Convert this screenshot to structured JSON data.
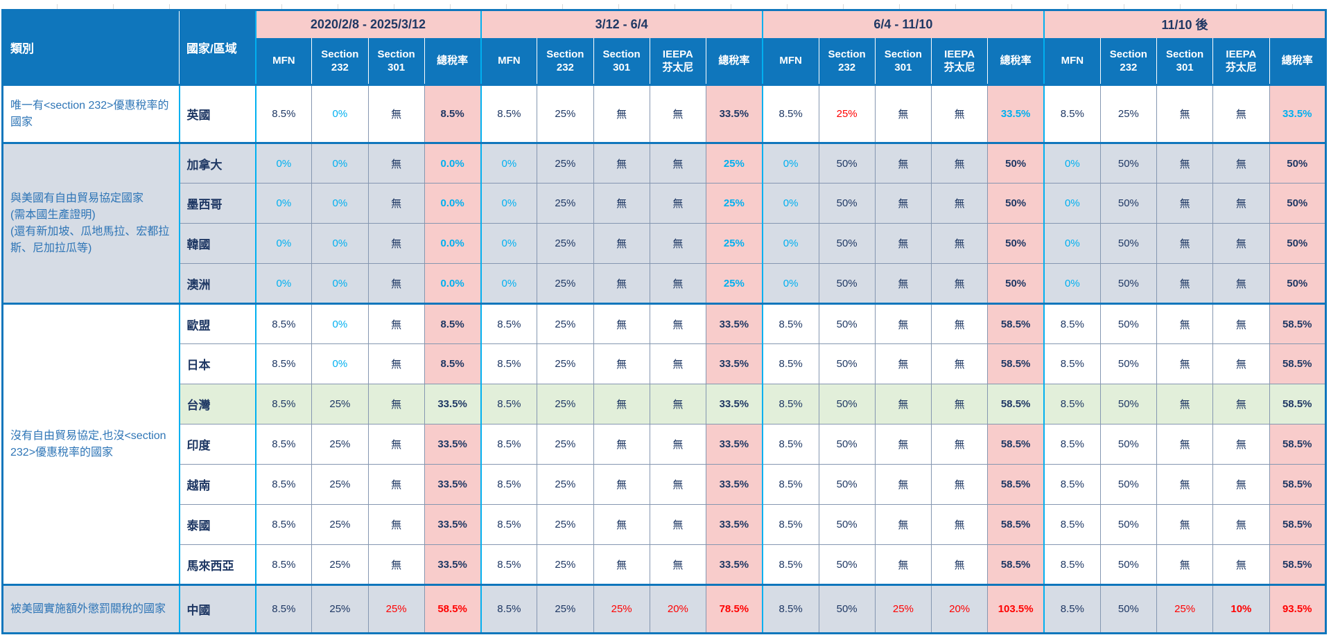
{
  "colors": {
    "header_blue": "#0F76BC",
    "period_pink": "#F8CCCB",
    "navy_text": "#1F3864",
    "cyan_text": "#00B0F0",
    "red_text": "#FF0000",
    "lavender_row": "#D6DCE5",
    "green_row": "#E2EFDA",
    "category_text_blue": "#2E75B6",
    "grid_line": "#8496B0",
    "period_divider_cyan": "#00B0F0"
  },
  "header": {
    "category_label": "類別",
    "country_label": "國家/區域",
    "periods": [
      {
        "label": "2020/2/8 - 2025/3/12",
        "cols": [
          "MFN",
          "Section\n232",
          "Section\n301",
          "總稅率"
        ]
      },
      {
        "label": "3/12 - 6/4",
        "cols": [
          "MFN",
          "Section\n232",
          "Section\n301",
          "IEEPA\n芬太尼",
          "總稅率"
        ]
      },
      {
        "label": "6/4 - 11/10",
        "cols": [
          "MFN",
          "Section\n232",
          "Section\n301",
          "IEEPA\n芬太尼",
          "總稅率"
        ]
      },
      {
        "label": "11/10 後",
        "cols": [
          "MFN",
          "Section\n232",
          "Section\n301",
          "IEEPA\n芬太尼",
          "總稅率"
        ]
      }
    ]
  },
  "groups": [
    {
      "category": "唯一有<section 232>優惠稅率的國家",
      "bg": "white",
      "rows": [
        {
          "country": "英國",
          "bg": "white",
          "cells": [
            [
              "8.5%"
            ],
            [
              "0%",
              "c"
            ],
            [
              "無"
            ],
            [
              "8.5%"
            ],
            [
              "8.5%"
            ],
            [
              "25%"
            ],
            [
              "無"
            ],
            [
              "無"
            ],
            [
              "33.5%"
            ],
            [
              "8.5%"
            ],
            [
              "25%",
              "r"
            ],
            [
              "無"
            ],
            [
              "無"
            ],
            [
              "33.5%",
              "c"
            ],
            [
              "8.5%"
            ],
            [
              "25%"
            ],
            [
              "無"
            ],
            [
              "無"
            ],
            [
              "33.5%",
              "c"
            ]
          ]
        }
      ]
    },
    {
      "category": "與美國有自由貿易協定國家\n(需本國生產證明)\n(還有新加坡、瓜地馬拉、宏都拉斯、尼加拉瓜等)",
      "bg": "lav",
      "rows": [
        {
          "country": "加拿大",
          "bg": "lav",
          "cells": [
            [
              "0%",
              "c"
            ],
            [
              "0%",
              "c"
            ],
            [
              "無"
            ],
            [
              "0.0%",
              "c"
            ],
            [
              "0%",
              "c"
            ],
            [
              "25%"
            ],
            [
              "無"
            ],
            [
              "無"
            ],
            [
              "25%",
              "c"
            ],
            [
              "0%",
              "c"
            ],
            [
              "50%"
            ],
            [
              "無"
            ],
            [
              "無"
            ],
            [
              "50%"
            ],
            [
              "0%",
              "c"
            ],
            [
              "50%"
            ],
            [
              "無"
            ],
            [
              "無"
            ],
            [
              "50%"
            ]
          ]
        },
        {
          "country": "墨西哥",
          "bg": "lav",
          "cells": [
            [
              "0%",
              "c"
            ],
            [
              "0%",
              "c"
            ],
            [
              "無"
            ],
            [
              "0.0%",
              "c"
            ],
            [
              "0%",
              "c"
            ],
            [
              "25%"
            ],
            [
              "無"
            ],
            [
              "無"
            ],
            [
              "25%",
              "c"
            ],
            [
              "0%",
              "c"
            ],
            [
              "50%"
            ],
            [
              "無"
            ],
            [
              "無"
            ],
            [
              "50%"
            ],
            [
              "0%",
              "c"
            ],
            [
              "50%"
            ],
            [
              "無"
            ],
            [
              "無"
            ],
            [
              "50%"
            ]
          ]
        },
        {
          "country": "韓國",
          "bg": "lav",
          "cells": [
            [
              "0%",
              "c"
            ],
            [
              "0%",
              "c"
            ],
            [
              "無"
            ],
            [
              "0.0%",
              "c"
            ],
            [
              "0%",
              "c"
            ],
            [
              "25%"
            ],
            [
              "無"
            ],
            [
              "無"
            ],
            [
              "25%",
              "c"
            ],
            [
              "0%",
              "c"
            ],
            [
              "50%"
            ],
            [
              "無"
            ],
            [
              "無"
            ],
            [
              "50%"
            ],
            [
              "0%",
              "c"
            ],
            [
              "50%"
            ],
            [
              "無"
            ],
            [
              "無"
            ],
            [
              "50%"
            ]
          ]
        },
        {
          "country": "澳洲",
          "bg": "lav",
          "cells": [
            [
              "0%",
              "c"
            ],
            [
              "0%",
              "c"
            ],
            [
              "無"
            ],
            [
              "0.0%",
              "c"
            ],
            [
              "0%",
              "c"
            ],
            [
              "25%"
            ],
            [
              "無"
            ],
            [
              "無"
            ],
            [
              "25%",
              "c"
            ],
            [
              "0%",
              "c"
            ],
            [
              "50%"
            ],
            [
              "無"
            ],
            [
              "無"
            ],
            [
              "50%"
            ],
            [
              "0%",
              "c"
            ],
            [
              "50%"
            ],
            [
              "無"
            ],
            [
              "無"
            ],
            [
              "50%"
            ]
          ]
        }
      ]
    },
    {
      "category": "沒有自由貿易協定,也沒<section 232>優惠稅率的國家",
      "bg": "white",
      "rows": [
        {
          "country": "歐盟",
          "bg": "white",
          "cells": [
            [
              "8.5%"
            ],
            [
              "0%",
              "c"
            ],
            [
              "無"
            ],
            [
              "8.5%"
            ],
            [
              "8.5%"
            ],
            [
              "25%"
            ],
            [
              "無"
            ],
            [
              "無"
            ],
            [
              "33.5%"
            ],
            [
              "8.5%"
            ],
            [
              "50%"
            ],
            [
              "無"
            ],
            [
              "無"
            ],
            [
              "58.5%"
            ],
            [
              "8.5%"
            ],
            [
              "50%"
            ],
            [
              "無"
            ],
            [
              "無"
            ],
            [
              "58.5%"
            ]
          ]
        },
        {
          "country": "日本",
          "bg": "white",
          "cells": [
            [
              "8.5%"
            ],
            [
              "0%",
              "c"
            ],
            [
              "無"
            ],
            [
              "8.5%"
            ],
            [
              "8.5%"
            ],
            [
              "25%"
            ],
            [
              "無"
            ],
            [
              "無"
            ],
            [
              "33.5%"
            ],
            [
              "8.5%"
            ],
            [
              "50%"
            ],
            [
              "無"
            ],
            [
              "無"
            ],
            [
              "58.5%"
            ],
            [
              "8.5%"
            ],
            [
              "50%"
            ],
            [
              "無"
            ],
            [
              "無"
            ],
            [
              "58.5%"
            ]
          ]
        },
        {
          "country": "台灣",
          "bg": "green",
          "cells": [
            [
              "8.5%"
            ],
            [
              "25%"
            ],
            [
              "無"
            ],
            [
              "33.5%"
            ],
            [
              "8.5%"
            ],
            [
              "25%"
            ],
            [
              "無"
            ],
            [
              "無"
            ],
            [
              "33.5%"
            ],
            [
              "8.5%"
            ],
            [
              "50%"
            ],
            [
              "無"
            ],
            [
              "無"
            ],
            [
              "58.5%"
            ],
            [
              "8.5%"
            ],
            [
              "50%"
            ],
            [
              "無"
            ],
            [
              "無"
            ],
            [
              "58.5%"
            ]
          ]
        },
        {
          "country": "印度",
          "bg": "white",
          "cells": [
            [
              "8.5%"
            ],
            [
              "25%"
            ],
            [
              "無"
            ],
            [
              "33.5%"
            ],
            [
              "8.5%"
            ],
            [
              "25%"
            ],
            [
              "無"
            ],
            [
              "無"
            ],
            [
              "33.5%"
            ],
            [
              "8.5%"
            ],
            [
              "50%"
            ],
            [
              "無"
            ],
            [
              "無"
            ],
            [
              "58.5%"
            ],
            [
              "8.5%"
            ],
            [
              "50%"
            ],
            [
              "無"
            ],
            [
              "無"
            ],
            [
              "58.5%"
            ]
          ]
        },
        {
          "country": "越南",
          "bg": "white",
          "cells": [
            [
              "8.5%"
            ],
            [
              "25%"
            ],
            [
              "無"
            ],
            [
              "33.5%"
            ],
            [
              "8.5%"
            ],
            [
              "25%"
            ],
            [
              "無"
            ],
            [
              "無"
            ],
            [
              "33.5%"
            ],
            [
              "8.5%"
            ],
            [
              "50%"
            ],
            [
              "無"
            ],
            [
              "無"
            ],
            [
              "58.5%"
            ],
            [
              "8.5%"
            ],
            [
              "50%"
            ],
            [
              "無"
            ],
            [
              "無"
            ],
            [
              "58.5%"
            ]
          ]
        },
        {
          "country": "泰國",
          "bg": "white",
          "cells": [
            [
              "8.5%"
            ],
            [
              "25%"
            ],
            [
              "無"
            ],
            [
              "33.5%"
            ],
            [
              "8.5%"
            ],
            [
              "25%"
            ],
            [
              "無"
            ],
            [
              "無"
            ],
            [
              "33.5%"
            ],
            [
              "8.5%"
            ],
            [
              "50%"
            ],
            [
              "無"
            ],
            [
              "無"
            ],
            [
              "58.5%"
            ],
            [
              "8.5%"
            ],
            [
              "50%"
            ],
            [
              "無"
            ],
            [
              "無"
            ],
            [
              "58.5%"
            ]
          ]
        },
        {
          "country": "馬來西亞",
          "bg": "white",
          "cells": [
            [
              "8.5%"
            ],
            [
              "25%"
            ],
            [
              "無"
            ],
            [
              "33.5%"
            ],
            [
              "8.5%"
            ],
            [
              "25%"
            ],
            [
              "無"
            ],
            [
              "無"
            ],
            [
              "33.5%"
            ],
            [
              "8.5%"
            ],
            [
              "50%"
            ],
            [
              "無"
            ],
            [
              "無"
            ],
            [
              "58.5%"
            ],
            [
              "8.5%"
            ],
            [
              "50%"
            ],
            [
              "無"
            ],
            [
              "無"
            ],
            [
              "58.5%"
            ]
          ]
        }
      ]
    },
    {
      "category": "被美國實施額外懲罰關稅的國家",
      "bg": "lav",
      "rows": [
        {
          "country": "中國",
          "bg": "lav",
          "cells": [
            [
              "8.5%"
            ],
            [
              "25%"
            ],
            [
              "25%",
              "r"
            ],
            [
              "58.5%",
              "r"
            ],
            [
              "8.5%"
            ],
            [
              "25%"
            ],
            [
              "25%",
              "r"
            ],
            [
              "20%",
              "r"
            ],
            [
              "78.5%",
              "r"
            ],
            [
              "8.5%"
            ],
            [
              "50%"
            ],
            [
              "25%",
              "r"
            ],
            [
              "20%",
              "r"
            ],
            [
              "103.5%",
              "r"
            ],
            [
              "8.5%"
            ],
            [
              "50%"
            ],
            [
              "25%",
              "r"
            ],
            [
              "10%",
              "r",
              "b"
            ],
            [
              "93.5%",
              "r"
            ]
          ]
        }
      ]
    }
  ]
}
